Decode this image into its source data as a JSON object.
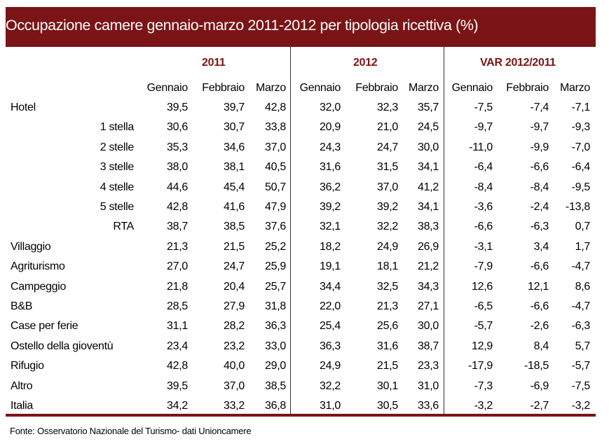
{
  "title": "Occupazione camere gennaio-marzo 2011-2012 per tipologia ricettiva  (%)",
  "groups": [
    "2011",
    "2012",
    "VAR 2012/2011"
  ],
  "months": [
    "Gennaio",
    "Febbraio",
    "Marzo",
    "Gennaio",
    "Febbraio",
    "Marzo",
    "Gennaio",
    "Febbraio",
    "Marzo"
  ],
  "rows": [
    {
      "label": "Hotel",
      "indent": false,
      "values": [
        "39,5",
        "39,7",
        "42,8",
        "32,0",
        "32,3",
        "35,7",
        "-7,5",
        "-7,4",
        "-7,1"
      ]
    },
    {
      "label": "1 stella",
      "indent": true,
      "values": [
        "30,6",
        "30,7",
        "33,8",
        "20,9",
        "21,0",
        "24,5",
        "-9,7",
        "-9,7",
        "-9,3"
      ]
    },
    {
      "label": "2 stelle",
      "indent": true,
      "values": [
        "35,3",
        "34,6",
        "37,0",
        "24,3",
        "24,7",
        "30,0",
        "-11,0",
        "-9,9",
        "-7,0"
      ]
    },
    {
      "label": "3 stelle",
      "indent": true,
      "values": [
        "38,0",
        "38,1",
        "40,5",
        "31,6",
        "31,5",
        "34,1",
        "-6,4",
        "-6,6",
        "-6,4"
      ]
    },
    {
      "label": "4 stelle",
      "indent": true,
      "values": [
        "44,6",
        "45,4",
        "50,7",
        "36,2",
        "37,0",
        "41,2",
        "-8,4",
        "-8,4",
        "-9,5"
      ]
    },
    {
      "label": "5 stelle",
      "indent": true,
      "values": [
        "42,8",
        "41,6",
        "47,9",
        "39,2",
        "39,2",
        "34,1",
        "-3,6",
        "-2,4",
        "-13,8"
      ]
    },
    {
      "label": "RTA",
      "indent": true,
      "values": [
        "38,7",
        "38,5",
        "37,6",
        "32,1",
        "32,2",
        "38,3",
        "-6,6",
        "-6,3",
        "0,7"
      ]
    },
    {
      "label": "Villaggio",
      "indent": false,
      "values": [
        "21,3",
        "21,5",
        "25,2",
        "18,2",
        "24,9",
        "26,9",
        "-3,1",
        "3,4",
        "1,7"
      ]
    },
    {
      "label": "Agriturismo",
      "indent": false,
      "values": [
        "27,0",
        "24,7",
        "25,9",
        "19,1",
        "18,1",
        "21,2",
        "-7,9",
        "-6,6",
        "-4,7"
      ]
    },
    {
      "label": "Campeggio",
      "indent": false,
      "values": [
        "21,8",
        "20,4",
        "25,7",
        "34,4",
        "32,5",
        "34,3",
        "12,6",
        "12,1",
        "8,6"
      ]
    },
    {
      "label": "B&B",
      "indent": false,
      "values": [
        "28,5",
        "27,9",
        "31,8",
        "22,0",
        "21,3",
        "27,1",
        "-6,5",
        "-6,6",
        "-4,7"
      ]
    },
    {
      "label": "Case per ferie",
      "indent": false,
      "values": [
        "31,1",
        "28,2",
        "36,3",
        "25,4",
        "25,6",
        "30,0",
        "-5,7",
        "-2,6",
        "-6,3"
      ]
    },
    {
      "label": "Ostello della gioventù",
      "indent": false,
      "values": [
        "23,4",
        "23,2",
        "33,0",
        "36,3",
        "31,6",
        "38,7",
        "12,9",
        "8,4",
        "5,7"
      ]
    },
    {
      "label": "Rifugio",
      "indent": false,
      "values": [
        "42,8",
        "40,0",
        "29,0",
        "24,9",
        "21,5",
        "23,3",
        "-17,9",
        "-18,5",
        "-5,7"
      ]
    },
    {
      "label": "Altro",
      "indent": false,
      "values": [
        "39,5",
        "37,0",
        "38,5",
        "32,2",
        "30,1",
        "31,0",
        "-7,3",
        "-6,9",
        "-7,5"
      ]
    },
    {
      "label": "Italia",
      "indent": false,
      "values": [
        "34,2",
        "33,2",
        "36,8",
        "31,0",
        "30,5",
        "33,6",
        "-3,2",
        "-2,7",
        "-3,2"
      ]
    }
  ],
  "source": "Fonte: Osservatorio Nazionale del Turismo- dati Unioncamere",
  "colors": {
    "title_bg": "#7b1416",
    "year_text": "#7b1416"
  }
}
